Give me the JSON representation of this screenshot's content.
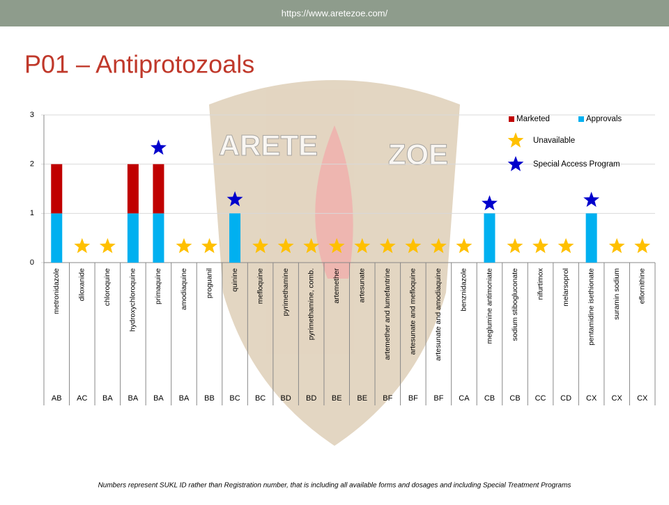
{
  "header": {
    "url": "https://www.aretezoe.com/"
  },
  "watermark": [
    "ARETE",
    "ZOE"
  ],
  "footnote": "Numbers represent SUKL ID rather than Registration number, that is including all available forms and dosages and including Special Treatment Programs",
  "chart_data": {
    "type": "bar",
    "stacked": true,
    "title": "P01 – Antiprotozoals",
    "categories": [
      "metronidazole",
      "diloxanide",
      "chloroquine",
      "hydroxychloroquine",
      "primaquine",
      "amodiaquine",
      "proguanil",
      "quinine",
      "mefloquine",
      "pyrimethamine",
      "pyrimethamine, comb.",
      "artemether",
      "artesunate",
      "artemether and lumefantrine",
      "artesunate and mefloquine",
      "artesunate and amodiaquine",
      "benznidazole",
      "meglumine antimoniate",
      "sodium stibogluconate",
      "nifurtimox",
      "melarsoprol",
      "pentamidine isethionate",
      "suramin sodium",
      "eflornithine"
    ],
    "codes": [
      "AB",
      "AC",
      "BA",
      "BA",
      "BA",
      "BA",
      "BB",
      "BC",
      "BC",
      "BD",
      "BD",
      "BE",
      "BE",
      "BF",
      "BF",
      "BF",
      "CA",
      "CB",
      "CB",
      "CC",
      "CD",
      "CX",
      "CX",
      "CX"
    ],
    "series": [
      {
        "name": "Marketed",
        "kind": "bar",
        "color": "#c00000",
        "values": [
          1,
          0,
          0,
          1,
          1,
          0,
          0,
          0,
          0,
          0,
          0,
          0,
          0,
          0,
          0,
          0,
          0,
          0,
          0,
          0,
          0,
          0,
          0,
          0
        ]
      },
      {
        "name": "Approvals",
        "kind": "bar",
        "color": "#00b0f0",
        "values": [
          1,
          0,
          0,
          1,
          1,
          0,
          0,
          1,
          0,
          0,
          0,
          0,
          0,
          0,
          0,
          0,
          0,
          1,
          0,
          0,
          0,
          1,
          0,
          0
        ]
      },
      {
        "name": "Unavailable",
        "kind": "star",
        "color": "#ffc000",
        "values": [
          null,
          0.33,
          0.33,
          null,
          null,
          0.33,
          0.33,
          null,
          0.33,
          0.33,
          0.33,
          0.33,
          0.33,
          0.33,
          0.33,
          0.33,
          0.33,
          null,
          0.33,
          0.33,
          0.33,
          null,
          0.33,
          0.33
        ]
      },
      {
        "name": "Special Access Program",
        "kind": "star",
        "color": "#0000cc",
        "values": [
          null,
          null,
          null,
          null,
          2.33,
          null,
          null,
          1.28,
          null,
          null,
          null,
          null,
          null,
          null,
          null,
          null,
          null,
          1.2,
          null,
          null,
          null,
          1.27,
          null,
          null
        ]
      }
    ],
    "ylim": [
      0,
      3
    ],
    "yticks": [
      0,
      1,
      2,
      3
    ],
    "grid": true
  }
}
